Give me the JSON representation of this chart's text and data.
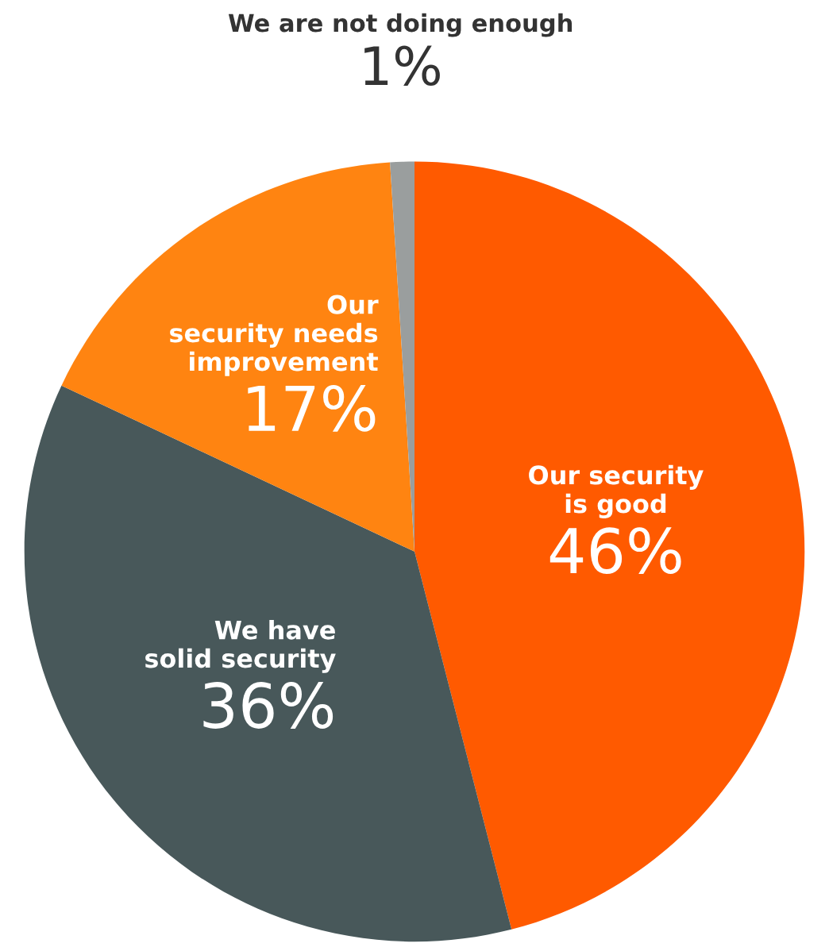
{
  "chart_data": {
    "type": "pie",
    "categories": [
      "Our security\nis good",
      "We have\nsolid security",
      "Our\nsecurity needs\nimprovement",
      "We are not doing enough"
    ],
    "values": [
      46,
      36,
      17,
      1
    ],
    "value_labels": [
      "46%",
      "36%",
      "17%",
      "1%"
    ],
    "colors": [
      "#ff5a00",
      "#48585a",
      "#ff8411",
      "#9a9e9e"
    ]
  }
}
